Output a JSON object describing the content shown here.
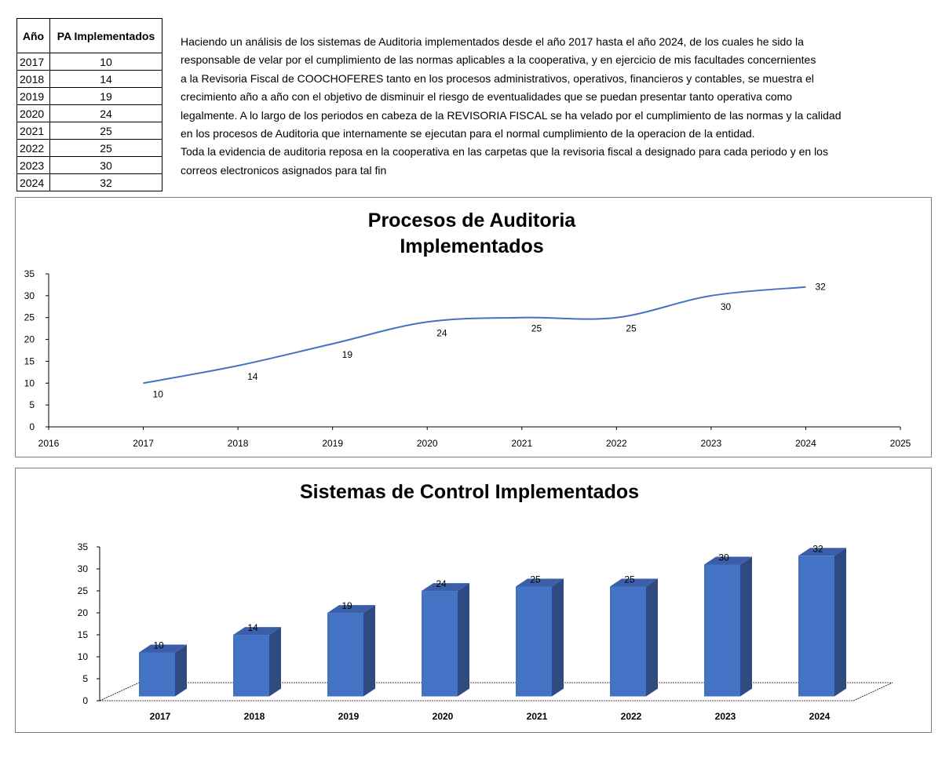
{
  "table": {
    "headers": [
      "Año",
      "PA Implementados"
    ],
    "rows": [
      {
        "year": "2017",
        "value": "10"
      },
      {
        "year": "2018",
        "value": "14"
      },
      {
        "year": "2019",
        "value": "19"
      },
      {
        "year": "2020",
        "value": "24"
      },
      {
        "year": "2021",
        "value": "25"
      },
      {
        "year": "2022",
        "value": "25"
      },
      {
        "year": "2023",
        "value": "30"
      },
      {
        "year": "2024",
        "value": "32"
      }
    ]
  },
  "intro": {
    "lines": [
      "Haciendo un análisis de los sistemas de Auditoria implementados desde el año 2017 hasta el año 2024, de los cuales he sido la",
      "responsable de velar por el cumplimiento de las normas aplicables a la cooperativa, y en ejercicio de mis facultades concernientes",
      "a la Revisoria Fiscal de COOCHOFERES tanto en los procesos administrativos, operativos, financieros y contables, se muestra el",
      "crecimiento año a año con el objetivo de disminuir el riesgo de eventualidades que se puedan presentar tanto operativa como",
      "legalmente. A lo largo de los periodos en cabeza de la REVISORIA FISCAL se ha velado por el cumplimiento de las normas y la calidad",
      "en los procesos de Auditoria que internamente se ejecutan para el normal cumplimiento de la operacion de la entidad.",
      "Toda la evidencia de auditoria reposa en la cooperativa en las carpetas que la revisoria fiscal a designado para cada periodo y en los",
      "correos electronicos asignados para tal fin"
    ]
  },
  "chart_data": [
    {
      "type": "line",
      "title": [
        "Procesos de Auditoria",
        "Implementados"
      ],
      "x": [
        2017,
        2018,
        2019,
        2020,
        2021,
        2022,
        2023,
        2024
      ],
      "values": [
        10,
        14,
        19,
        24,
        25,
        25,
        30,
        32
      ],
      "xlim": [
        2016,
        2025
      ],
      "ylim": [
        0,
        35
      ],
      "xticks": [
        2016,
        2017,
        2018,
        2019,
        2020,
        2021,
        2022,
        2023,
        2024,
        2025
      ],
      "yticks": [
        0,
        5,
        10,
        15,
        20,
        25,
        30,
        35
      ],
      "data_labels": [
        "10",
        "14",
        "19",
        "24",
        "25",
        "25",
        "30",
        "32"
      ],
      "smooth": true,
      "grid": false,
      "legend": "none",
      "line_color": "#4472C4"
    },
    {
      "type": "bar",
      "style": "3d-column",
      "title": "Sistemas de Control Implementados",
      "categories": [
        "2017",
        "2018",
        "2019",
        "2020",
        "2021",
        "2022",
        "2023",
        "2024"
      ],
      "values": [
        10,
        14,
        19,
        24,
        25,
        25,
        30,
        32
      ],
      "ylim": [
        0,
        35
      ],
      "yticks": [
        0,
        5,
        10,
        15,
        20,
        25,
        30,
        35
      ],
      "data_labels": [
        "10",
        "14",
        "19",
        "24",
        "25",
        "25",
        "30",
        "32"
      ],
      "grid": false,
      "legend": "none",
      "bar_color": "#4472C4",
      "bar_side_color": "#2F4A80",
      "bar_top_color": "#3A5EA8"
    }
  ]
}
